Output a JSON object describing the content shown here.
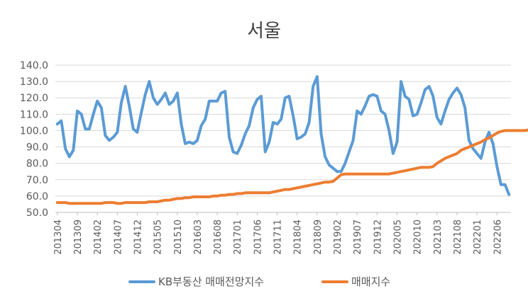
{
  "chart_data": {
    "type": "line",
    "title": "서울",
    "xlabel": "",
    "ylabel": "",
    "ylim": [
      50,
      140
    ],
    "yticks": [
      "140.0",
      "130.0",
      "120.0",
      "110.0",
      "100.0",
      "90.0",
      "80.0",
      "70.0",
      "60.0",
      "50.0"
    ],
    "ytick_values": [
      140,
      130,
      120,
      110,
      100,
      90,
      80,
      70,
      60,
      50
    ],
    "xtick_labels": [
      "201304",
      "201309",
      "201402",
      "201407",
      "201412",
      "201505",
      "201510",
      "201603",
      "201608",
      "201701",
      "201706",
      "201711",
      "201804",
      "201809",
      "201902",
      "201907",
      "201912",
      "202005",
      "202010",
      "202103",
      "202108",
      "202201",
      "202206"
    ],
    "grid": true,
    "legend_position": "bottom",
    "colors": {
      "series1": "#5B9BD5",
      "series2": "#ED7D31",
      "grid": "#D9D9D9",
      "axis": "#BFBFBF"
    },
    "series": [
      {
        "name": "KB부동산 매매전망지수",
        "values": [
          104,
          106,
          89,
          84,
          88,
          112,
          110,
          101,
          101,
          110,
          118,
          114,
          97,
          94,
          96,
          99,
          117,
          127,
          115,
          101,
          99,
          111,
          122,
          130,
          120,
          116,
          119,
          123,
          116,
          118,
          123,
          104,
          92,
          93,
          92,
          94,
          103,
          107,
          118,
          118,
          118,
          123,
          124,
          96,
          87,
          86,
          91,
          98,
          103,
          114,
          119,
          121,
          87,
          93,
          105,
          104,
          107,
          120,
          121,
          109,
          95,
          96,
          98,
          105,
          127,
          133,
          98,
          84,
          79,
          77,
          75,
          75,
          80,
          87,
          94,
          112,
          110,
          115,
          121,
          122,
          121,
          112,
          110,
          100,
          86,
          93,
          130,
          121,
          119,
          109,
          110,
          117,
          125,
          127,
          121,
          108,
          104,
          112,
          119,
          123,
          126,
          122,
          114,
          94,
          89,
          86,
          83,
          93,
          99,
          92,
          78,
          67,
          67,
          61
        ]
      },
      {
        "name": "매매지수",
        "values": [
          56,
          56,
          56,
          55.5,
          55.5,
          55.5,
          55.5,
          55.5,
          55.5,
          55.5,
          55.5,
          55.5,
          56,
          56,
          56,
          55.5,
          55.5,
          56,
          56,
          56,
          56,
          56,
          56,
          56.5,
          56.5,
          56.5,
          57,
          57.5,
          57.5,
          58,
          58.5,
          58.5,
          59,
          59,
          59.5,
          59.5,
          59.5,
          59.5,
          59.5,
          60,
          60,
          60.5,
          60.5,
          61,
          61,
          61.5,
          61.5,
          62,
          62,
          62,
          62,
          62,
          62,
          62,
          62.5,
          63,
          63.5,
          64,
          64,
          64.5,
          65,
          65.5,
          66,
          66.5,
          67,
          67.5,
          68,
          68.5,
          68.5,
          69,
          71,
          73,
          73.5,
          73.5,
          73.5,
          73.5,
          73.5,
          73.5,
          73.5,
          73.5,
          73.5,
          73.5,
          73.5,
          73.5,
          74,
          74.5,
          75,
          75.5,
          76,
          76.5,
          77,
          77.5,
          77.5,
          77.5,
          78,
          80,
          81.5,
          83,
          84,
          85,
          86,
          88,
          89,
          90,
          91,
          92,
          93,
          94.5,
          95.5,
          97,
          98.5,
          99.5,
          100,
          100,
          100,
          100,
          100,
          100,
          100.5,
          100.5,
          100.5,
          100.5,
          100
        ]
      }
    ]
  }
}
